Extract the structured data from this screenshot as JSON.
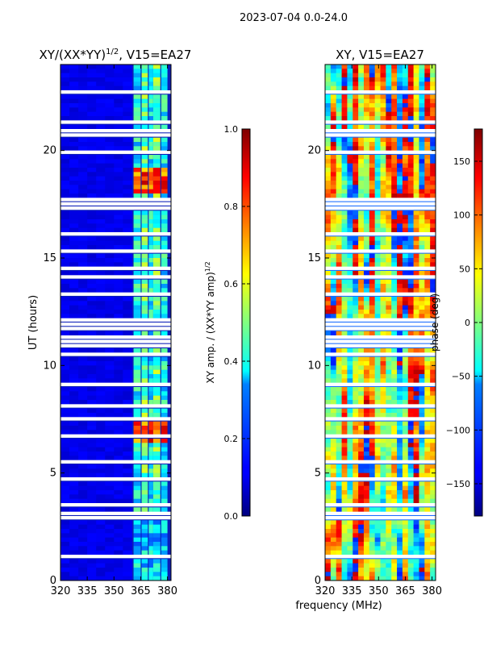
{
  "suptitle": "2023-07-04 0.0-24.0",
  "chart_data": [
    {
      "type": "heatmap",
      "title": "XY/(XX*YY)$^{1/2}$, V15=EA27",
      "title_main": "XY/(XX*YY)",
      "title_sup": "1/2",
      "title_tail": ", V15=EA27",
      "xlabel": "",
      "ylabel": "UT (hours)",
      "xlim": [
        320,
        382
      ],
      "ylim": [
        0,
        24
      ],
      "xticks": [
        320,
        335,
        350,
        365,
        380
      ],
      "yticks": [
        0,
        5,
        10,
        15,
        20
      ],
      "colorbar": {
        "label": "XY amp. / (XX*YY amp)$^{1/2}$",
        "label_main": "XY amp. / (XX*YY amp)",
        "label_sup": "1/2",
        "range": [
          0.0,
          1.0
        ],
        "ticks": [
          "0.0",
          "0.2",
          "0.4",
          "0.6",
          "0.8",
          "1.0"
        ],
        "tick_values": [
          0.0,
          0.2,
          0.4,
          0.6,
          0.8,
          1.0
        ],
        "colormap": "jet"
      }
    },
    {
      "type": "heatmap",
      "title": "XY, V15=EA27",
      "xlabel": "frequency (MHz)",
      "ylabel": "",
      "xlim": [
        320,
        382
      ],
      "ylim": [
        0,
        24
      ],
      "xticks": [
        320,
        335,
        350,
        365,
        380
      ],
      "yticks": [
        0,
        5,
        10,
        15,
        20
      ],
      "colorbar": {
        "label": "phase (deg)",
        "range": [
          -180,
          180
        ],
        "ticks": [
          "−150",
          "−100",
          "−50",
          "0",
          "50",
          "100",
          "150"
        ],
        "tick_values": [
          -150,
          -100,
          -50,
          0,
          50,
          100,
          150
        ],
        "colormap": "jet"
      }
    }
  ],
  "colors": {
    "jet_dark_blue": "#00007f",
    "jet_blue": "#0000ff",
    "jet_cyan": "#00ffff",
    "jet_yellow": "#ffff00",
    "jet_red": "#ff0000",
    "jet_dark_red": "#7f0000",
    "gap_white": "#ffffff"
  }
}
